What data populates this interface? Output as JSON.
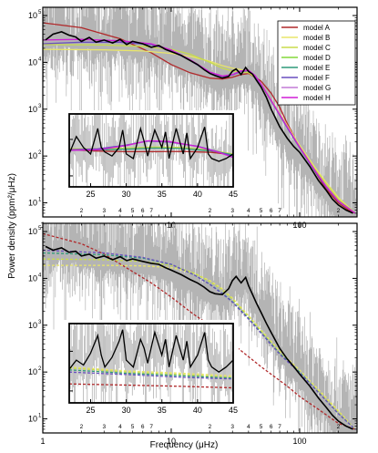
{
  "colors": {
    "noise": "#b4b4b4",
    "smooth": "#000000",
    "model A": "#b0282a",
    "model B": "#e9e66a",
    "model C": "#c8dc4c",
    "model D": "#84d83a",
    "model E": "#2f9a7a",
    "model F": "#6a4fbf",
    "model G": "#c27ad6",
    "model H": "#d01fd6"
  },
  "chart_data": [
    {
      "type": "line",
      "panel": "top",
      "xlabel": "Frequency (μHz)",
      "ylabel": "Power density (ppm²/μHz)",
      "xscale": "log",
      "yscale": "log",
      "xlim": [
        1,
        280
      ],
      "ylim": [
        5,
        150000
      ],
      "x_major_ticks": [
        1,
        10,
        100
      ],
      "x_major_labels": [
        "1",
        "10",
        "100"
      ],
      "x_minor_labels": [
        "2",
        "3",
        "4",
        "5",
        "6",
        "7",
        "2",
        "3",
        "4",
        "5",
        "6",
        "7",
        "2"
      ],
      "y_major_labels": [
        "10",
        "10",
        "10",
        "10",
        "10"
      ],
      "y_exponents": [
        "1",
        "2",
        "3",
        "4",
        "5"
      ],
      "legend_position": "top-right",
      "legend": [
        "model A",
        "model B",
        "model C",
        "model D",
        "model E",
        "model F",
        "model G",
        "model H"
      ],
      "series": [
        {
          "name": "model A",
          "line": "solid",
          "x": [
            1,
            2,
            4,
            7,
            10,
            14,
            20,
            25,
            30,
            35,
            40,
            50,
            60,
            70,
            80,
            100,
            130,
            160,
            200,
            240,
            270
          ],
          "y": [
            70000,
            55000,
            32000,
            16000,
            9000,
            6000,
            4600,
            4400,
            4800,
            5500,
            5800,
            4000,
            2200,
            1100,
            500,
            160,
            50,
            20,
            10,
            7,
            6
          ]
        },
        {
          "name": "model B",
          "line": "solid",
          "x": [
            1,
            3,
            6,
            10,
            14,
            20,
            25,
            30,
            35,
            40,
            45,
            50,
            60,
            80,
            100,
            130,
            160,
            200,
            270
          ],
          "y": [
            19000,
            18500,
            17500,
            15500,
            13500,
            10500,
            8500,
            7500,
            7000,
            6200,
            5000,
            3500,
            1600,
            450,
            170,
            60,
            28,
            13,
            6
          ]
        },
        {
          "name": "model C",
          "line": "solid",
          "x": [
            1,
            3,
            6,
            10,
            14,
            20,
            25,
            30,
            35,
            40,
            45,
            50,
            60,
            80,
            100,
            130,
            160,
            200,
            270
          ],
          "y": [
            24000,
            23500,
            22000,
            19000,
            15000,
            10000,
            7500,
            6500,
            6300,
            6000,
            4800,
            3300,
            1500,
            420,
            160,
            55,
            26,
            12,
            6
          ]
        },
        {
          "name": "model F",
          "line": "solid",
          "x": [
            1,
            2,
            4,
            7,
            10,
            14,
            20,
            25,
            30,
            35,
            40,
            45,
            50,
            60,
            80,
            100,
            130,
            160,
            200,
            270
          ],
          "y": [
            25000,
            27000,
            27000,
            24000,
            18000,
            11000,
            6000,
            5000,
            5400,
            6400,
            6600,
            5000,
            3400,
            1500,
            400,
            150,
            50,
            22,
            11,
            6
          ]
        },
        {
          "name": "model H",
          "line": "solid",
          "x": [
            1,
            2,
            4,
            7,
            10,
            14,
            20,
            25,
            30,
            35,
            40,
            45,
            50,
            60,
            80,
            100,
            130,
            160,
            200,
            270
          ],
          "y": [
            30000,
            31000,
            29000,
            25000,
            18500,
            11500,
            6200,
            5100,
            5500,
            6600,
            6800,
            5200,
            3500,
            1550,
            420,
            155,
            52,
            23,
            11,
            6
          ]
        }
      ],
      "smoothed_spectrum": {
        "x": [
          1.05,
          1.2,
          1.4,
          1.6,
          1.8,
          2,
          2.3,
          2.6,
          3,
          3.5,
          4,
          4.5,
          5,
          6,
          7,
          8,
          9,
          10,
          12,
          14,
          16,
          18,
          20,
          22,
          25,
          28,
          30,
          32,
          35,
          38,
          40,
          43,
          46,
          50,
          55,
          60,
          70,
          80,
          90,
          100,
          120,
          140,
          160,
          180,
          200,
          230,
          260
        ],
        "y": [
          30000,
          40000,
          45000,
          38000,
          35000,
          28000,
          34000,
          27000,
          30000,
          26000,
          31000,
          24000,
          28000,
          25000,
          21000,
          23000,
          19000,
          17000,
          14000,
          11000,
          9000,
          7000,
          5800,
          5200,
          4600,
          5000,
          6500,
          7200,
          5500,
          7800,
          6400,
          5600,
          4200,
          3000,
          1800,
          1000,
          420,
          240,
          160,
          120,
          60,
          30,
          19,
          12,
          9,
          7,
          6
        ]
      },
      "inset": {
        "xlim": [
          22,
          45
        ],
        "ylim": [
          5,
          500
        ],
        "x_ticks": [
          25,
          30,
          35,
          40,
          45
        ],
        "x_tick_labels": [
          "25",
          "30",
          "35",
          "40",
          "45"
        ],
        "y_major_labels": [
          "10",
          "10"
        ],
        "y_exponents": [
          "1",
          "2"
        ],
        "series": [
          {
            "name": "model A",
            "x": [
              22,
              26,
              30,
              34,
              38,
              42,
              45
            ],
            "y": [
              52,
              48,
              46,
              46,
              47,
              44,
              38
            ]
          },
          {
            "name": "model C",
            "x": [
              22,
              26,
              30,
              34,
              38,
              42,
              45
            ],
            "y": [
              55,
              55,
              58,
              62,
              60,
              50,
              40
            ]
          },
          {
            "name": "model E",
            "x": [
              22,
              26,
              30,
              34,
              38,
              42,
              45
            ],
            "y": [
              50,
              52,
              54,
              58,
              56,
              48,
              38
            ]
          },
          {
            "name": "model F",
            "x": [
              22,
              26,
              30,
              33,
              36,
              40,
              43,
              45
            ],
            "y": [
              52,
              55,
              70,
              90,
              85,
              65,
              45,
              35
            ]
          },
          {
            "name": "model H",
            "x": [
              22,
              26,
              30,
              33,
              36,
              40,
              43,
              45
            ],
            "y": [
              50,
              52,
              68,
              92,
              88,
              64,
              44,
              32
            ]
          }
        ],
        "smoothed_spectrum": {
          "x": [
            22,
            23,
            24,
            25,
            26,
            26.5,
            27,
            28,
            29,
            29.5,
            30,
            31,
            32,
            32.5,
            33,
            34,
            35,
            35.5,
            36,
            37,
            38,
            38.5,
            39,
            40,
            41,
            41.5,
            42,
            43,
            44,
            45
          ],
          "y": [
            40,
            120,
            60,
            40,
            200,
            60,
            45,
            35,
            60,
            180,
            40,
            30,
            200,
            90,
            35,
            180,
            60,
            160,
            30,
            200,
            40,
            150,
            30,
            60,
            220,
            40,
            30,
            25,
            30,
            40
          ]
        }
      }
    },
    {
      "type": "line",
      "panel": "bottom",
      "xlabel": "Frequency (μHz)",
      "ylabel": "Power density (ppm²/μHz)",
      "xscale": "log",
      "yscale": "log",
      "xlim": [
        1,
        280
      ],
      "ylim": [
        5,
        150000
      ],
      "x_major_ticks": [
        1,
        10,
        100
      ],
      "x_major_labels": [
        "1",
        "10",
        "100"
      ],
      "x_minor_labels": [
        "2",
        "3",
        "4",
        "5",
        "6",
        "7",
        "2",
        "3",
        "4",
        "5",
        "6",
        "7",
        "2"
      ],
      "y_major_labels": [
        "10",
        "10",
        "10",
        "10",
        "10"
      ],
      "y_exponents": [
        "1",
        "2",
        "3",
        "4",
        "5"
      ],
      "series": [
        {
          "name": "model A",
          "line": "dashed",
          "x": [
            1,
            2,
            3,
            5,
            7,
            10,
            15,
            20,
            30,
            50,
            80,
            100,
            150,
            200,
            270
          ],
          "y": [
            90000,
            55000,
            33000,
            14000,
            8000,
            4000,
            1700,
            1000,
            400,
            130,
            50,
            30,
            14,
            8,
            6
          ]
        },
        {
          "name": "model B",
          "line": "dashed",
          "x": [
            1,
            3,
            6,
            10,
            15,
            20,
            25,
            30,
            40,
            50,
            70,
            100,
            150,
            200,
            270
          ],
          "y": [
            19000,
            19000,
            18500,
            17000,
            13000,
            9000,
            6000,
            3800,
            1600,
            800,
            280,
            110,
            35,
            15,
            6
          ]
        },
        {
          "name": "model C",
          "line": "dashed",
          "x": [
            1,
            3,
            6,
            10,
            15,
            20,
            25,
            30,
            40,
            50,
            70,
            100,
            150,
            200,
            270
          ],
          "y": [
            26000,
            25000,
            23000,
            19000,
            13000,
            8500,
            5700,
            3600,
            1500,
            750,
            260,
            100,
            32,
            14,
            6
          ]
        },
        {
          "name": "model E",
          "line": "dashed",
          "x": [
            1,
            3,
            6,
            10,
            15,
            20,
            25,
            30,
            40,
            50,
            70,
            100,
            150,
            200,
            270
          ],
          "y": [
            35000,
            32000,
            27000,
            20000,
            12000,
            7500,
            4800,
            3200,
            1400,
            700,
            250,
            100,
            30,
            13,
            6
          ]
        },
        {
          "name": "model F",
          "line": "dashed",
          "x": [
            1,
            3,
            6,
            10,
            15,
            20,
            25,
            30,
            40,
            50,
            70,
            100,
            150,
            200,
            270
          ],
          "y": [
            40000,
            35000,
            28000,
            20000,
            12000,
            7400,
            4700,
            3100,
            1350,
            680,
            240,
            95,
            30,
            13,
            6
          ]
        }
      ],
      "smoothed_spectrum": {
        "x": [
          1.05,
          1.2,
          1.4,
          1.6,
          1.8,
          2,
          2.3,
          2.6,
          3,
          3.5,
          4,
          4.5,
          5,
          6,
          7,
          8,
          9,
          10,
          12,
          14,
          16,
          18,
          20,
          22,
          25,
          28,
          30,
          32,
          35,
          38,
          40,
          43,
          46,
          50,
          55,
          60,
          70,
          80,
          90,
          100,
          120,
          140,
          160,
          180,
          200,
          230,
          260
        ],
        "y": [
          48000,
          40000,
          45000,
          36000,
          38000,
          30000,
          33000,
          27000,
          30000,
          25000,
          29000,
          24000,
          26000,
          23000,
          21000,
          20000,
          17000,
          15000,
          12000,
          9500,
          8000,
          6500,
          5200,
          4700,
          4500,
          6000,
          9000,
          11000,
          8000,
          10500,
          7000,
          4500,
          3000,
          1900,
          1100,
          700,
          320,
          190,
          130,
          90,
          50,
          28,
          18,
          12,
          9,
          7,
          6
        ]
      },
      "inset": {
        "xlim": [
          22,
          45
        ],
        "ylim": [
          5,
          500
        ],
        "x_ticks": [
          25,
          30,
          35,
          40,
          45
        ],
        "x_tick_labels": [
          "25",
          "30",
          "35",
          "40",
          "45"
        ],
        "y_major_labels": [
          "10",
          "10"
        ],
        "y_exponents": [
          "1",
          "2"
        ],
        "series": [
          {
            "name": "model A",
            "line": "dashed",
            "x": [
              22,
              30,
              38,
              45
            ],
            "y": [
              15,
              14,
              13,
              12
            ]
          },
          {
            "name": "model B",
            "line": "dashed",
            "x": [
              22,
              30,
              38,
              45
            ],
            "y": [
              40,
              32,
              28,
              24
            ]
          },
          {
            "name": "model C",
            "line": "dashed",
            "x": [
              22,
              30,
              38,
              45
            ],
            "y": [
              38,
              30,
              26,
              22
            ]
          },
          {
            "name": "model E",
            "line": "dashed",
            "x": [
              22,
              30,
              38,
              45
            ],
            "y": [
              34,
              28,
              24,
              21
            ]
          },
          {
            "name": "model F",
            "line": "dashed",
            "x": [
              22,
              30,
              38,
              45
            ],
            "y": [
              30,
              26,
              22,
              20
            ]
          }
        ],
        "smoothed_spectrum": {
          "x": [
            22,
            23,
            24,
            25,
            26,
            26.5,
            27,
            28,
            29,
            29.5,
            30,
            31,
            32,
            32.5,
            33,
            34,
            35,
            35.5,
            36,
            37,
            38,
            38.5,
            39,
            40,
            41,
            41.5,
            42,
            43,
            44,
            45
          ],
          "y": [
            35,
            60,
            45,
            90,
            250,
            80,
            40,
            70,
            180,
            350,
            60,
            40,
            200,
            120,
            50,
            300,
            80,
            200,
            40,
            250,
            60,
            180,
            40,
            80,
            300,
            60,
            40,
            30,
            40,
            60
          ]
        }
      }
    }
  ]
}
